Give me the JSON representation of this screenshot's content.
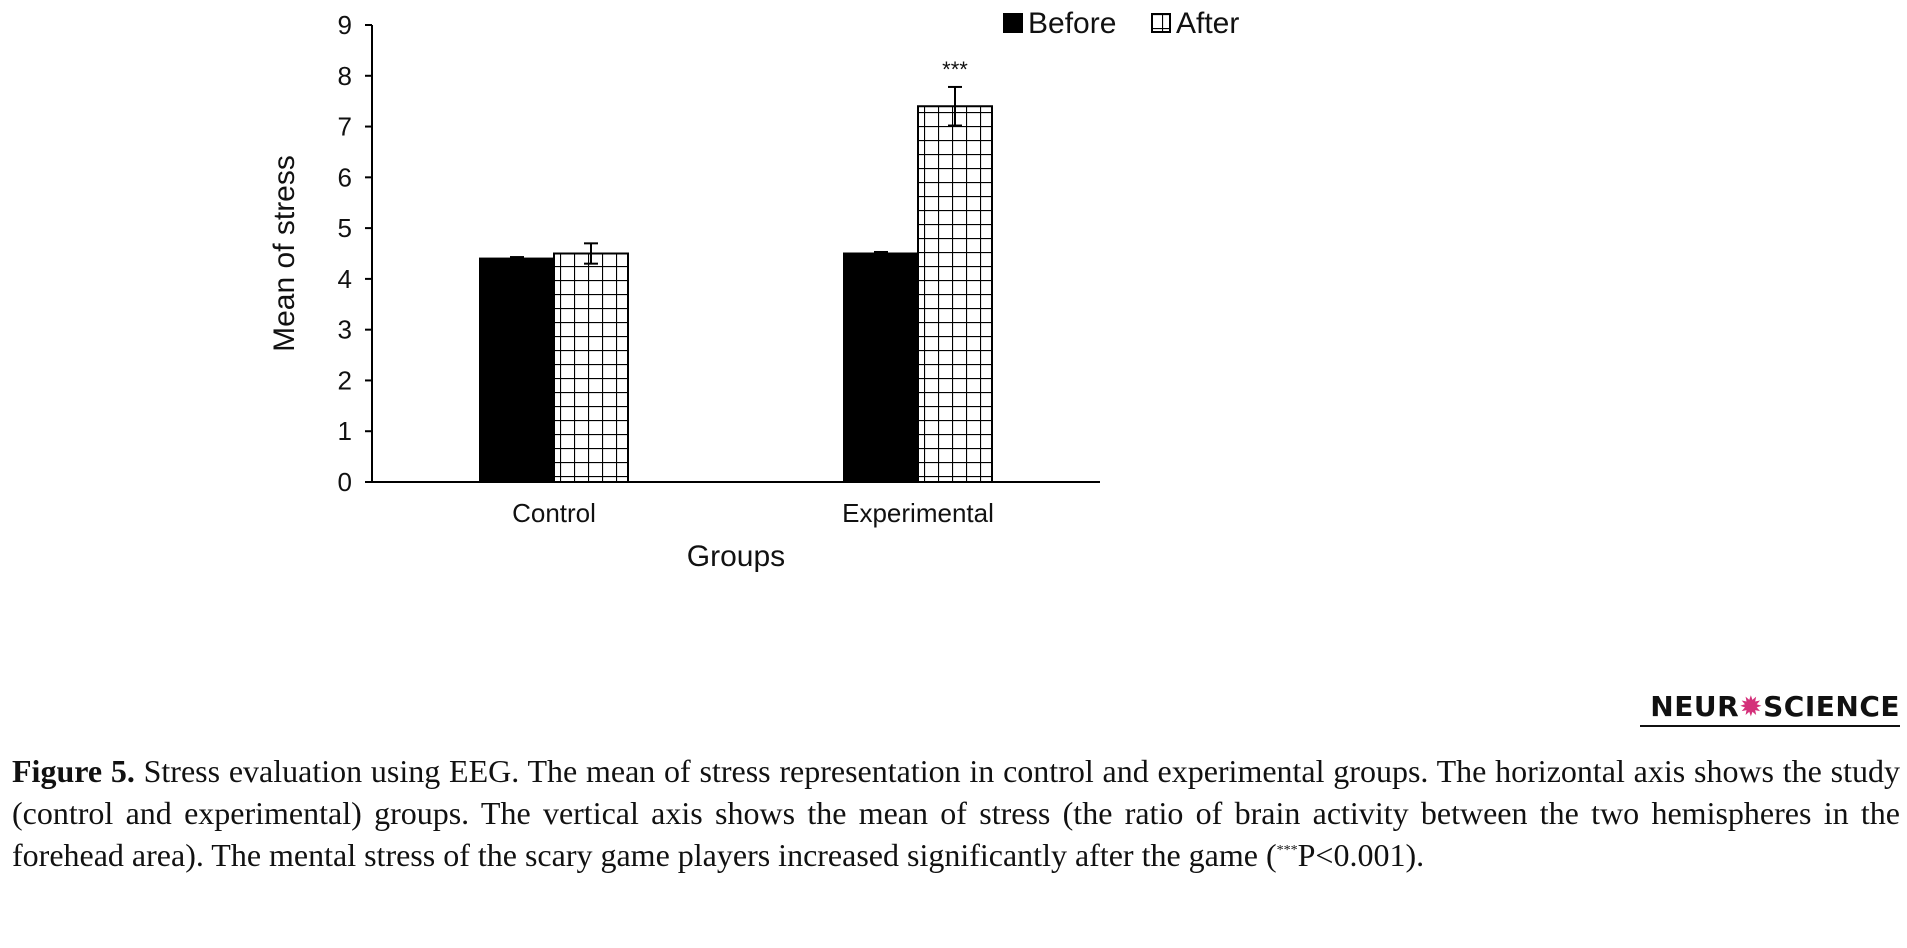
{
  "chart_data": {
    "type": "bar",
    "categories": [
      "Control",
      "Experimental"
    ],
    "series": [
      {
        "name": "Before",
        "values": [
          4.4,
          4.5
        ],
        "errors": [
          0.03,
          0.03
        ],
        "fill": "solid"
      },
      {
        "name": "After",
        "values": [
          4.5,
          7.4
        ],
        "errors": [
          0.2,
          0.38
        ],
        "fill": "grid"
      }
    ],
    "annotations": [
      {
        "category": "Experimental",
        "series": "After",
        "text": "***"
      }
    ],
    "title": "",
    "xlabel": "Groups",
    "ylabel": "Mean of stress",
    "ylim": [
      0,
      9
    ],
    "yticks": [
      "0",
      "1",
      "2",
      "3",
      "4",
      "5",
      "6",
      "7",
      "8",
      "9"
    ],
    "grid": false,
    "legend_position": "top-right",
    "colors": {
      "bar_fill": "#000000",
      "pattern_line": "#000000",
      "axis": "#000000"
    }
  },
  "logo": {
    "text_a": "NEUR",
    "text_b": "SCIENCE"
  },
  "caption": {
    "label": "Figure 5.",
    "text_1": " Stress evaluation using EEG. The mean of stress representation in control and experimental groups. The horizontal axis shows the study (control and experimental) groups. The vertical axis shows the mean of stress (the ratio of brain activity between the two hemispheres in the forehead area). The mental stress of the scary game players increased significantly after the game (",
    "sup": "***",
    "text_2": "P<0.001)."
  }
}
